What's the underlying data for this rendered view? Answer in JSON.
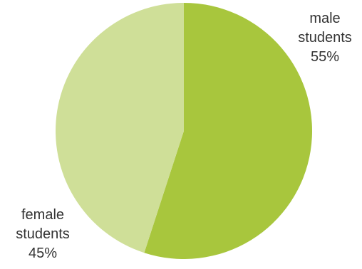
{
  "chart_data": {
    "type": "pie",
    "slices": [
      {
        "name": "male students",
        "label_lines": [
          "male",
          "students",
          "55%"
        ],
        "value": 55,
        "color": "#a8c63d"
      },
      {
        "name": "female students",
        "label_lines": [
          "female",
          "students",
          "45%"
        ],
        "value": 45,
        "color": "#cfdf98"
      }
    ],
    "start": "12 o'clock",
    "direction": "clockwise",
    "legend": "none"
  }
}
